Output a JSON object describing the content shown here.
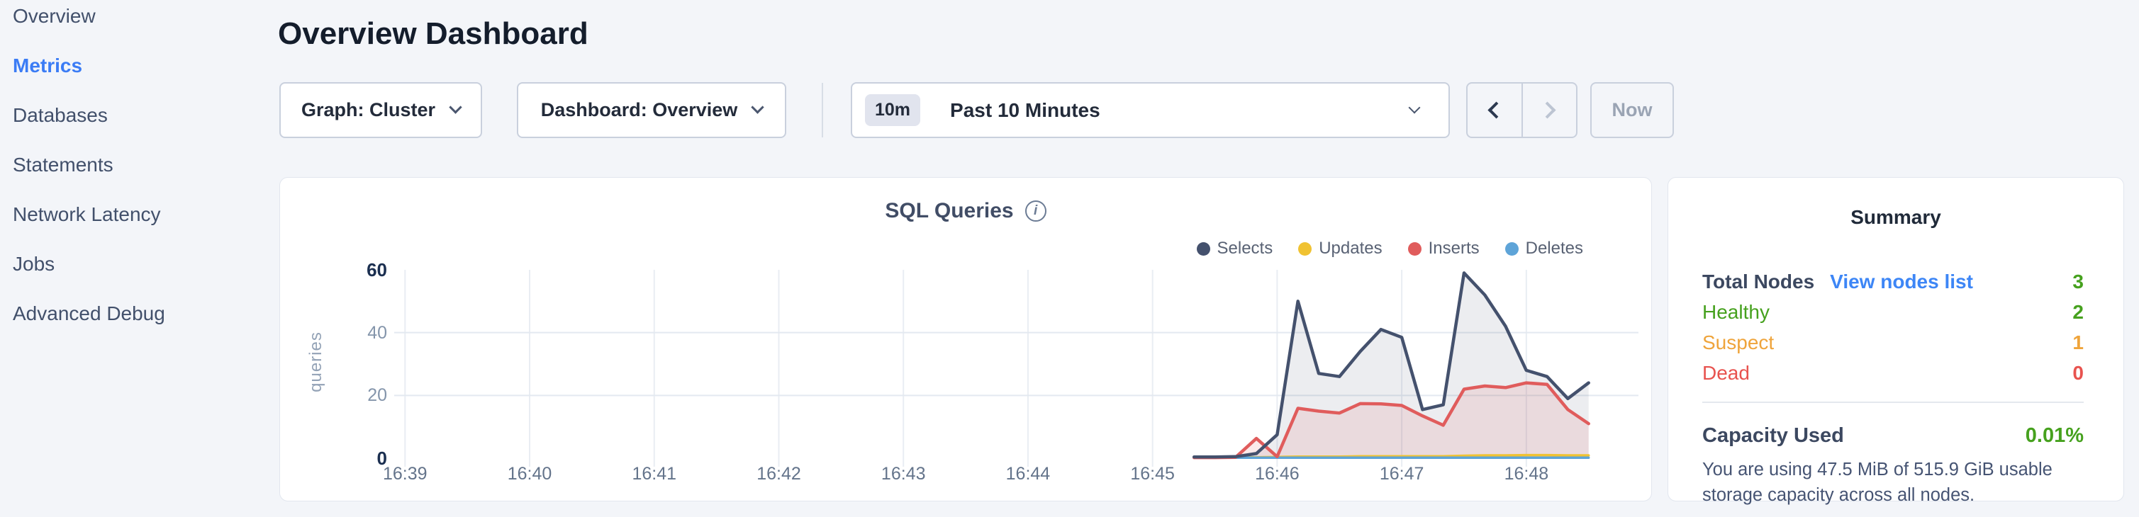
{
  "sidebar": {
    "items": [
      {
        "label": "Overview",
        "active": false
      },
      {
        "label": "Metrics",
        "active": true
      },
      {
        "label": "Databases",
        "active": false
      },
      {
        "label": "Statements",
        "active": false
      },
      {
        "label": "Network Latency",
        "active": false
      },
      {
        "label": "Jobs",
        "active": false
      },
      {
        "label": "Advanced Debug",
        "active": false
      }
    ]
  },
  "header": {
    "title": "Overview Dashboard"
  },
  "toolbar": {
    "graph_dropdown": "Graph: Cluster",
    "dashboard_dropdown": "Dashboard: Overview",
    "time_badge": "10m",
    "time_label": "Past 10 Minutes",
    "back_button": "previous time interval",
    "forward_button": "next time interval",
    "now_label": "Now"
  },
  "chart_card": {
    "title": "SQL Queries"
  },
  "chart_data": {
    "type": "area",
    "title": "SQL Queries",
    "ylabel": "queries",
    "ylim": [
      0,
      60
    ],
    "y_ticks": [
      0,
      20,
      40,
      60
    ],
    "x_ticks": [
      "16:39",
      "16:40",
      "16:41",
      "16:42",
      "16:43",
      "16:44",
      "16:45",
      "16:46",
      "16:47",
      "16:48"
    ],
    "x_axis_window": {
      "start": "16:38:36",
      "end": "16:48:54"
    },
    "grid": true,
    "legend_position": "top-right",
    "x": [
      "16:45:20",
      "16:45:30",
      "16:45:40",
      "16:45:50",
      "16:46:00",
      "16:46:10",
      "16:46:20",
      "16:46:30",
      "16:46:40",
      "16:46:50",
      "16:47:00",
      "16:47:10",
      "16:47:20",
      "16:47:30",
      "16:47:40",
      "16:47:50",
      "16:48:00",
      "16:48:10",
      "16:48:20",
      "16:48:30"
    ],
    "series": [
      {
        "name": "Selects",
        "color": "#44516d",
        "fill": "rgba(68,81,109,0.10)",
        "values": [
          0.4,
          0.4,
          0.5,
          1.5,
          7.5,
          50,
          27,
          26,
          34,
          41,
          38.5,
          15.5,
          17,
          59,
          52,
          42,
          28,
          26,
          19,
          24
        ]
      },
      {
        "name": "Updates",
        "color": "#f0c232",
        "fill": null,
        "values": [
          0.3,
          0.3,
          0.3,
          0.3,
          0.4,
          0.5,
          0.5,
          0.5,
          0.6,
          0.6,
          0.6,
          0.6,
          0.6,
          0.8,
          0.9,
          0.9,
          1,
          1,
          0.9,
          0.9
        ]
      },
      {
        "name": "Inserts",
        "color": "#e05c5c",
        "fill": "rgba(224,92,92,0.13)",
        "values": [
          0.2,
          0.2,
          0.3,
          6.3,
          0.5,
          15.9,
          15,
          14.4,
          17.4,
          17.3,
          16.8,
          13.5,
          10.5,
          22,
          23,
          22.5,
          24,
          23.5,
          15.5,
          11
        ]
      },
      {
        "name": "Deletes",
        "color": "#5ea4d8",
        "fill": null,
        "values": [
          0.15,
          0.15,
          0.15,
          0.15,
          0.15,
          0.15,
          0.15,
          0.15,
          0.15,
          0.15,
          0.15,
          0.15,
          0.15,
          0.15,
          0.15,
          0.15,
          0.15,
          0.15,
          0.15,
          0.15
        ]
      }
    ]
  },
  "summary": {
    "title": "Summary",
    "node_rows": [
      {
        "label": "Total Nodes",
        "link": "View nodes list",
        "value": "3",
        "label_color": "#3c4860",
        "value_color": "#46a11e",
        "strong": true
      },
      {
        "label": "Healthy",
        "value": "2",
        "label_color": "#46a11e",
        "value_color": "#46a11e",
        "strong": false
      },
      {
        "label": "Suspect",
        "value": "1",
        "label_color": "#efa43b",
        "value_color": "#efa43b",
        "strong": false
      },
      {
        "label": "Dead",
        "value": "0",
        "label_color": "#e8534f",
        "value_color": "#e8534f",
        "strong": false
      }
    ],
    "capacity": {
      "label": "Capacity Used",
      "value": "0.01%",
      "value_color": "#46a11e",
      "description": "You are using 47.5 MiB of 515.9 GiB usable storage capacity across all nodes."
    }
  }
}
